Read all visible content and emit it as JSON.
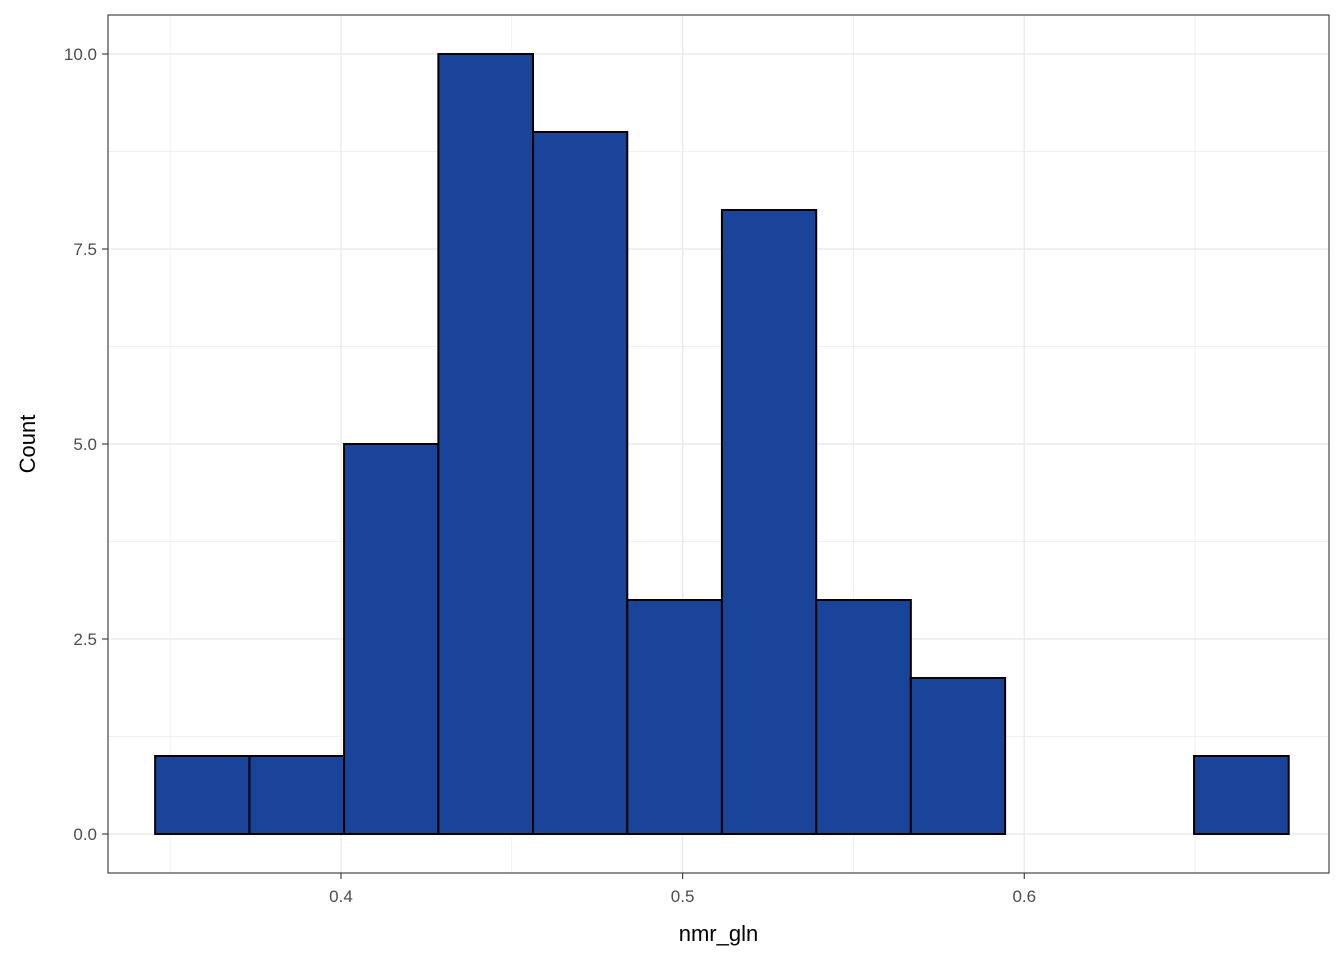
{
  "chart_data": {
    "type": "bar",
    "subtype": "histogram",
    "xlabel": "nmr_gln",
    "ylabel": "Count",
    "bar_color": "#1a439a",
    "bar_border_color": "#000000",
    "grid": true,
    "grid_color": "#ebebeb",
    "panel_border_color": "#333333",
    "xlim": [
      0.3318,
      0.6892
    ],
    "ylim": [
      -0.5,
      10.5
    ],
    "x_ticks": [
      0.4,
      0.5,
      0.6
    ],
    "x_tick_labels": [
      "0.4",
      "0.5",
      "0.6"
    ],
    "y_ticks": [
      0,
      2.5,
      5,
      7.5,
      10
    ],
    "y_tick_labels": [
      "0.0",
      "2.5",
      "5.0",
      "7.5",
      "10.0"
    ],
    "bins": [
      {
        "x0": 0.3456,
        "x1": 0.3732,
        "count": 1
      },
      {
        "x0": 0.3732,
        "x1": 0.4009,
        "count": 1
      },
      {
        "x0": 0.4009,
        "x1": 0.4285,
        "count": 5
      },
      {
        "x0": 0.4285,
        "x1": 0.4562,
        "count": 10
      },
      {
        "x0": 0.4562,
        "x1": 0.4838,
        "count": 9
      },
      {
        "x0": 0.4838,
        "x1": 0.5115,
        "count": 3
      },
      {
        "x0": 0.5115,
        "x1": 0.5391,
        "count": 8
      },
      {
        "x0": 0.5391,
        "x1": 0.5668,
        "count": 3
      },
      {
        "x0": 0.5668,
        "x1": 0.5944,
        "count": 2
      },
      {
        "x0": 0.5944,
        "x1": 0.6221,
        "count": 0
      },
      {
        "x0": 0.6221,
        "x1": 0.6497,
        "count": 0
      },
      {
        "x0": 0.6497,
        "x1": 0.6774,
        "count": 1
      }
    ]
  }
}
